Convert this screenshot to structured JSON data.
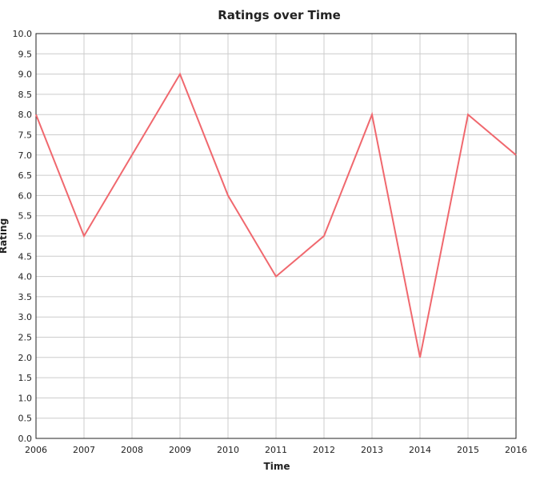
{
  "chart_data": {
    "type": "line",
    "title": "Ratings over Time",
    "xlabel": "Time",
    "ylabel": "Rating",
    "x": [
      "2006",
      "2007",
      "2008",
      "2009",
      "2010",
      "2011",
      "2012",
      "2013",
      "2014",
      "2015",
      "2016"
    ],
    "series": [
      {
        "values": [
          8,
          5,
          7,
          9,
          6,
          4,
          5,
          8,
          2,
          8,
          7
        ]
      }
    ],
    "xticks": [
      "2006",
      "2007",
      "2008",
      "2009",
      "2010",
      "2011",
      "2012",
      "2013",
      "2014",
      "2015",
      "2016"
    ],
    "yticks": [
      "0.0",
      "0.5",
      "1.0",
      "1.5",
      "2.0",
      "2.5",
      "3.0",
      "3.5",
      "4.0",
      "4.5",
      "5.0",
      "5.5",
      "6.0",
      "6.5",
      "7.0",
      "7.5",
      "8.0",
      "8.5",
      "9.0",
      "9.5",
      "10.0"
    ],
    "ylim": [
      0,
      10
    ],
    "grid": true,
    "legend": "none",
    "line_color": "#f0686e"
  }
}
